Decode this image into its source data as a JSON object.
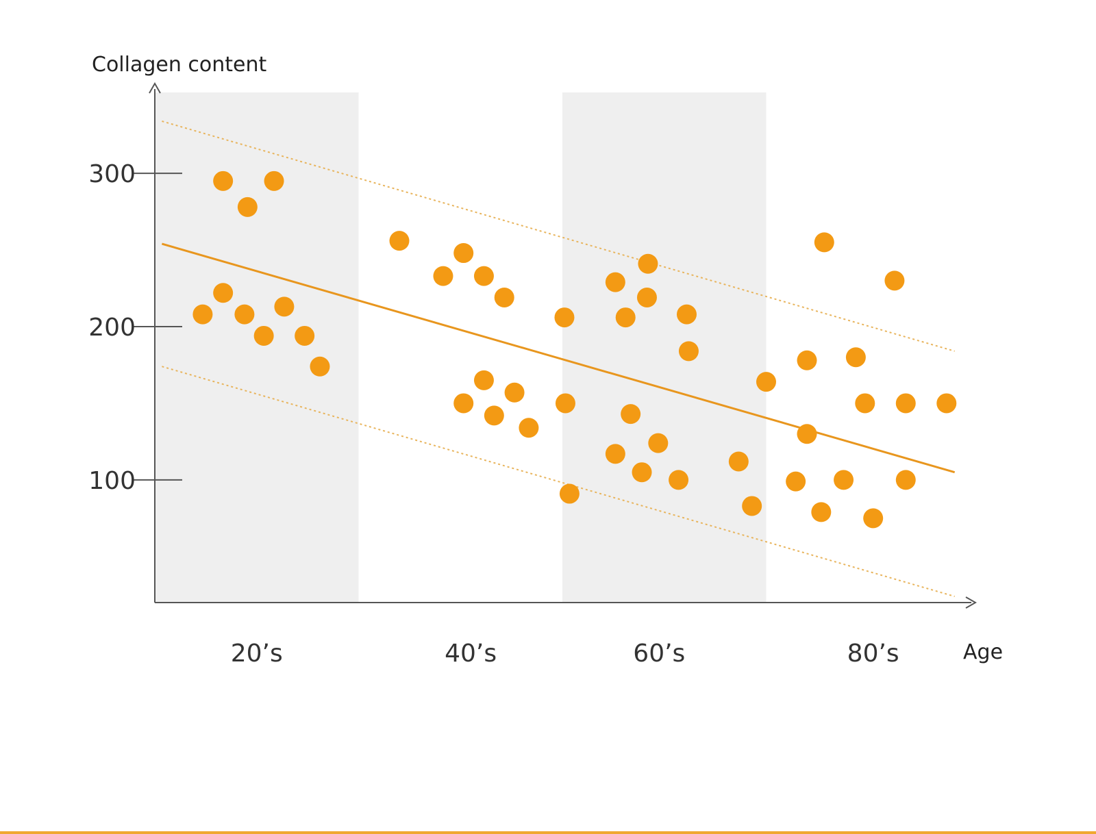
{
  "chart_data": {
    "type": "scatter",
    "title": "",
    "ylabel": "Collagen content",
    "xlabel": "Age",
    "xlim": [
      10,
      90
    ],
    "ylim": [
      20,
      355
    ],
    "yticks": [
      {
        "value": 100,
        "label": "100"
      },
      {
        "value": 200,
        "label": "200"
      },
      {
        "value": 300,
        "label": "300"
      }
    ],
    "categories": [
      {
        "label": "20’s",
        "x": 20
      },
      {
        "label": "40’s",
        "x": 41
      },
      {
        "label": "60’s",
        "x": 59.5
      },
      {
        "label": "80’s",
        "x": 80.5
      }
    ],
    "shaded_bands": [
      {
        "x_start": 10,
        "x_end": 30
      },
      {
        "x_start": 50,
        "x_end": 70
      }
    ],
    "trend_line": {
      "x": [
        10.7,
        88.5
      ],
      "y": [
        254,
        105
      ]
    },
    "upper_bound": {
      "x": [
        10.7,
        88.5
      ],
      "y": [
        334,
        184
      ]
    },
    "lower_bound": {
      "x": [
        10.7,
        88.5
      ],
      "y": [
        174,
        24
      ]
    },
    "series": [
      {
        "name": "Collagen content",
        "color": "#f39a14",
        "points": [
          {
            "x": 16.7,
            "y": 295
          },
          {
            "x": 19.1,
            "y": 278
          },
          {
            "x": 21.7,
            "y": 295
          },
          {
            "x": 14.7,
            "y": 208
          },
          {
            "x": 16.7,
            "y": 222
          },
          {
            "x": 18.8,
            "y": 208
          },
          {
            "x": 20.7,
            "y": 194
          },
          {
            "x": 22.7,
            "y": 213
          },
          {
            "x": 24.7,
            "y": 194
          },
          {
            "x": 26.2,
            "y": 174
          },
          {
            "x": 34.0,
            "y": 256
          },
          {
            "x": 38.3,
            "y": 233
          },
          {
            "x": 40.3,
            "y": 248
          },
          {
            "x": 42.3,
            "y": 233
          },
          {
            "x": 44.3,
            "y": 219
          },
          {
            "x": 50.2,
            "y": 206
          },
          {
            "x": 40.3,
            "y": 150
          },
          {
            "x": 42.3,
            "y": 165
          },
          {
            "x": 43.3,
            "y": 142
          },
          {
            "x": 45.3,
            "y": 157
          },
          {
            "x": 46.7,
            "y": 134
          },
          {
            "x": 50.3,
            "y": 150
          },
          {
            "x": 50.7,
            "y": 91
          },
          {
            "x": 55.2,
            "y": 229
          },
          {
            "x": 56.2,
            "y": 206
          },
          {
            "x": 58.3,
            "y": 219
          },
          {
            "x": 58.4,
            "y": 241
          },
          {
            "x": 62.2,
            "y": 208
          },
          {
            "x": 62.4,
            "y": 184
          },
          {
            "x": 56.7,
            "y": 143
          },
          {
            "x": 55.2,
            "y": 117
          },
          {
            "x": 57.8,
            "y": 105
          },
          {
            "x": 59.4,
            "y": 124
          },
          {
            "x": 61.4,
            "y": 100
          },
          {
            "x": 67.3,
            "y": 112
          },
          {
            "x": 68.6,
            "y": 83
          },
          {
            "x": 70.0,
            "y": 164
          },
          {
            "x": 72.9,
            "y": 99
          },
          {
            "x": 74.0,
            "y": 178
          },
          {
            "x": 74.0,
            "y": 130
          },
          {
            "x": 75.4,
            "y": 79
          },
          {
            "x": 75.7,
            "y": 255
          },
          {
            "x": 77.6,
            "y": 100
          },
          {
            "x": 78.8,
            "y": 180
          },
          {
            "x": 79.7,
            "y": 150
          },
          {
            "x": 80.5,
            "y": 75
          },
          {
            "x": 82.6,
            "y": 230
          },
          {
            "x": 83.7,
            "y": 150
          },
          {
            "x": 83.7,
            "y": 100
          },
          {
            "x": 87.7,
            "y": 150
          }
        ]
      }
    ],
    "colors": {
      "points": "#f39a14",
      "trend": "#e8961e",
      "bounds": "#e8b45c",
      "band": "#efefef",
      "axis": "#555555",
      "bottom_bar": "#f0a830"
    }
  }
}
